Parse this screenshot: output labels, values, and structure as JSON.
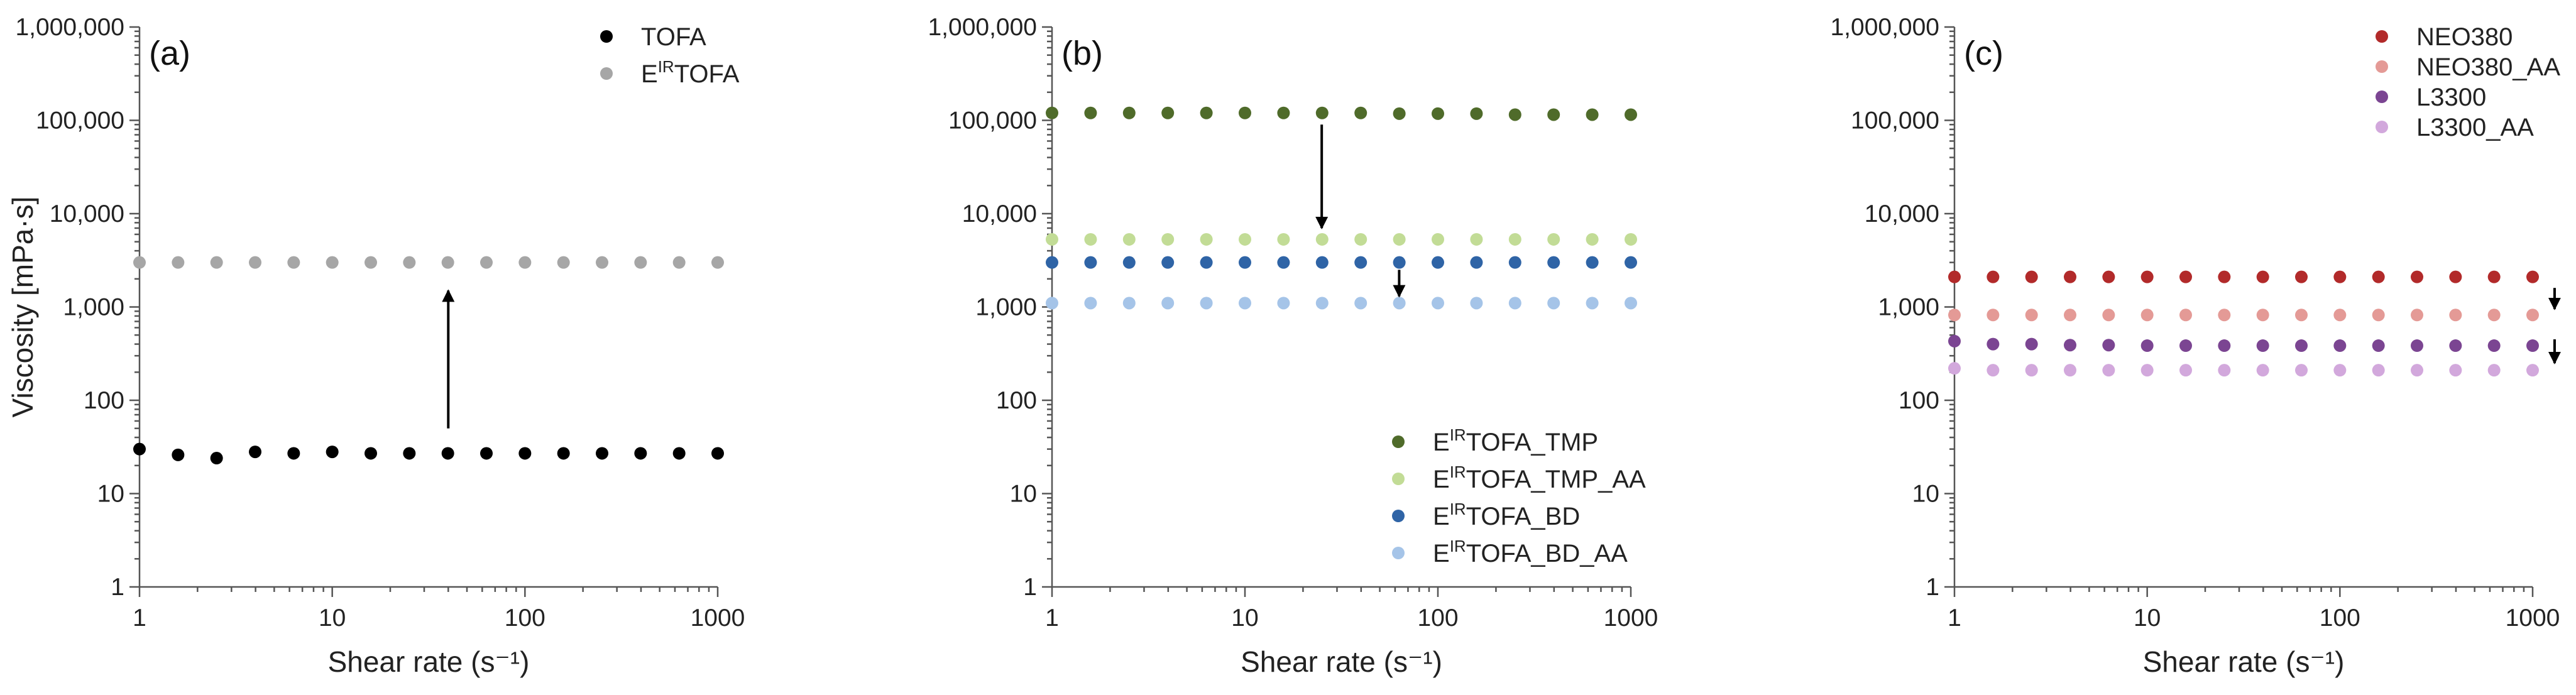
{
  "chart_data": [
    {
      "type": "scatter",
      "panel_label": "(a)",
      "xlabel": "Shear rate (s⁻¹)",
      "ylabel": "Viscosity [mPa·s]",
      "xscale": "log",
      "yscale": "log",
      "xlim": [
        1,
        1000
      ],
      "ylim": [
        1,
        1000000
      ],
      "xticks": [
        "1",
        "10",
        "100",
        "1000"
      ],
      "yticks": [
        "1",
        "10",
        "100",
        "1,000",
        "10,000",
        "100,000",
        "1,000,000"
      ],
      "legend_position": "top-right",
      "series": [
        {
          "name": "TOFA",
          "pre": "",
          "sup": "",
          "post": "TOFA",
          "color": "#000000",
          "x": [
            1,
            1.585,
            2.512,
            3.981,
            6.31,
            10,
            15.85,
            25.12,
            39.81,
            63.1,
            100,
            158.5,
            251.2,
            398.1,
            631,
            1000
          ],
          "y": [
            30,
            26,
            24,
            28,
            27,
            28,
            27,
            27,
            27,
            27,
            27,
            27,
            27,
            27,
            27,
            27
          ]
        },
        {
          "name": "EIRTOFA",
          "pre": "E",
          "sup": "IR",
          "post": "TOFA",
          "color": "#a6a6a6",
          "x": [
            1,
            1.585,
            2.512,
            3.981,
            6.31,
            10,
            15.85,
            25.12,
            39.81,
            63.1,
            100,
            158.5,
            251.2,
            398.1,
            631,
            1000
          ],
          "y": [
            3000,
            3000,
            3000,
            3000,
            3000,
            3000,
            3000,
            3000,
            3000,
            3000,
            3000,
            3000,
            3000,
            3000,
            3000,
            3000
          ]
        }
      ],
      "annotations": [
        {
          "type": "arrow",
          "x": 40,
          "from": 50,
          "to": 1500
        }
      ]
    },
    {
      "type": "scatter",
      "panel_label": "(b)",
      "xlabel": "Shear rate (s⁻¹)",
      "ylabel": "",
      "xscale": "log",
      "yscale": "log",
      "xlim": [
        1,
        1000
      ],
      "ylim": [
        1,
        1000000
      ],
      "xticks": [
        "1",
        "10",
        "100",
        "1000"
      ],
      "yticks": [
        "1",
        "10",
        "100",
        "1,000",
        "10,000",
        "100,000",
        "1,000,000"
      ],
      "legend_position": "bottom-right",
      "series": [
        {
          "name": "EIRTOFA_TMP",
          "pre": "E",
          "sup": "IR",
          "post": "TOFA_TMP",
          "color": "#4f6b2a",
          "x": [
            1,
            1.585,
            2.512,
            3.981,
            6.31,
            10,
            15.85,
            25.12,
            39.81,
            63.1,
            100,
            158.5,
            251.2,
            398.1,
            631,
            1000
          ],
          "y": [
            120000,
            120000,
            120000,
            120000,
            120000,
            120000,
            120000,
            120000,
            120000,
            118000,
            118000,
            118000,
            115000,
            115000,
            115000,
            115000
          ]
        },
        {
          "name": "EIRTOFA_TMP_AA",
          "pre": "E",
          "sup": "IR",
          "post": "TOFA_TMP_AA",
          "color": "#c2dc96",
          "x": [
            1,
            1.585,
            2.512,
            3.981,
            6.31,
            10,
            15.85,
            25.12,
            39.81,
            63.1,
            100,
            158.5,
            251.2,
            398.1,
            631,
            1000
          ],
          "y": [
            5300,
            5300,
            5300,
            5300,
            5300,
            5300,
            5300,
            5300,
            5300,
            5300,
            5300,
            5300,
            5300,
            5300,
            5300,
            5300
          ]
        },
        {
          "name": "EIRTOFA_BD",
          "pre": "E",
          "sup": "IR",
          "post": "TOFA_BD",
          "color": "#2f64a6",
          "x": [
            1,
            1.585,
            2.512,
            3.981,
            6.31,
            10,
            15.85,
            25.12,
            39.81,
            63.1,
            100,
            158.5,
            251.2,
            398.1,
            631,
            1000
          ],
          "y": [
            3000,
            3000,
            3000,
            3000,
            3000,
            3000,
            3000,
            3000,
            3000,
            3000,
            3000,
            3000,
            3000,
            3000,
            3000,
            3000
          ]
        },
        {
          "name": "EIRTOFA_BD_AA",
          "pre": "E",
          "sup": "IR",
          "post": "TOFA_BD_AA",
          "color": "#a5c4e8",
          "x": [
            1,
            1.585,
            2.512,
            3.981,
            6.31,
            10,
            15.85,
            25.12,
            39.81,
            63.1,
            100,
            158.5,
            251.2,
            398.1,
            631,
            1000
          ],
          "y": [
            1100,
            1100,
            1100,
            1100,
            1100,
            1100,
            1100,
            1100,
            1100,
            1100,
            1100,
            1100,
            1100,
            1100,
            1100,
            1100
          ]
        }
      ],
      "annotations": [
        {
          "type": "arrow",
          "x": 25,
          "from": 90000,
          "to": 7000
        },
        {
          "type": "arrow",
          "x": 63,
          "from": 2500,
          "to": 1300
        }
      ]
    },
    {
      "type": "scatter",
      "panel_label": "(c)",
      "xlabel": "Shear rate (s⁻¹)",
      "ylabel": "",
      "xscale": "log",
      "yscale": "log",
      "xlim": [
        1,
        1000
      ],
      "ylim": [
        1,
        1000000
      ],
      "xticks": [
        "1",
        "10",
        "100",
        "1000"
      ],
      "yticks": [
        "1",
        "10",
        "100",
        "1,000",
        "10,000",
        "100,000",
        "1,000,000"
      ],
      "legend_position": "top-right",
      "series": [
        {
          "name": "NEO380",
          "pre": "",
          "sup": "",
          "post": "NEO380",
          "color": "#b22a2a",
          "x": [
            1,
            1.585,
            2.512,
            3.981,
            6.31,
            10,
            15.85,
            25.12,
            39.81,
            63.1,
            100,
            158.5,
            251.2,
            398.1,
            631,
            1000
          ],
          "y": [
            2100,
            2100,
            2100,
            2100,
            2100,
            2100,
            2100,
            2100,
            2100,
            2100,
            2100,
            2100,
            2100,
            2100,
            2100,
            2100
          ]
        },
        {
          "name": "NEO380_AA",
          "pre": "",
          "sup": "",
          "post": "NEO380_AA",
          "color": "#e49a96",
          "x": [
            1,
            1.585,
            2.512,
            3.981,
            6.31,
            10,
            15.85,
            25.12,
            39.81,
            63.1,
            100,
            158.5,
            251.2,
            398.1,
            631,
            1000
          ],
          "y": [
            820,
            820,
            820,
            820,
            820,
            820,
            820,
            820,
            820,
            820,
            820,
            820,
            820,
            820,
            820,
            820
          ]
        },
        {
          "name": "L3300",
          "pre": "",
          "sup": "",
          "post": "L3300",
          "color": "#7b4592",
          "x": [
            1,
            1.585,
            2.512,
            3.981,
            6.31,
            10,
            15.85,
            25.12,
            39.81,
            63.1,
            100,
            158.5,
            251.2,
            398.1,
            631,
            1000
          ],
          "y": [
            430,
            400,
            400,
            390,
            390,
            385,
            385,
            385,
            385,
            385,
            385,
            385,
            385,
            385,
            385,
            385
          ]
        },
        {
          "name": "L3300_AA",
          "pre": "",
          "sup": "",
          "post": "L3300_AA",
          "color": "#d2a8dc",
          "x": [
            1,
            1.585,
            2.512,
            3.981,
            6.31,
            10,
            15.85,
            25.12,
            39.81,
            63.1,
            100,
            158.5,
            251.2,
            398.1,
            631,
            1000
          ],
          "y": [
            220,
            210,
            210,
            210,
            210,
            210,
            210,
            210,
            210,
            210,
            210,
            210,
            210,
            210,
            210,
            210
          ]
        }
      ],
      "annotations": [
        {
          "type": "arrow",
          "x": 1300,
          "from": 1600,
          "to": 950
        },
        {
          "type": "arrow",
          "x": 1300,
          "from": 450,
          "to": 250
        }
      ]
    }
  ]
}
